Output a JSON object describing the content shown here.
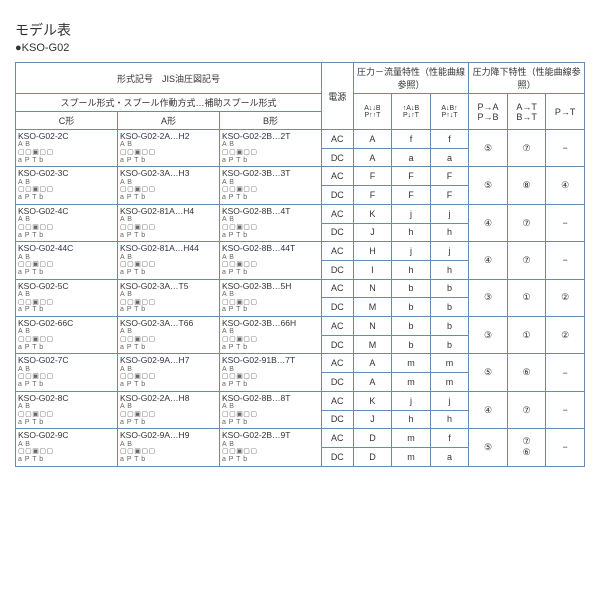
{
  "title": "モデル表",
  "subtitle": "●KSO-G02",
  "headers": {
    "model_no": "形式記号　JIS油圧図記号",
    "spool": "スプール形式・スプール作動方式…補助スプール形式",
    "c_type": "C形",
    "a_type": "A形",
    "b_type": "B形",
    "power": "電源",
    "pf_title": "圧力－流量特性（性能曲線参照）",
    "pd_title": "圧力降下特性（性能曲線参照）",
    "pd_col1": "P→A\nP→B",
    "pd_col2": "A→T\nB→T",
    "pd_col3": "P→T"
  },
  "pf_diagrams": [
    "A↓↓B\nP↑↑T",
    "↑A↓B\nP↓↑T",
    "A↓B↑\nP↑↓T"
  ],
  "rows": [
    {
      "c": "KSO-G02-2C",
      "a": "KSO-G02-2A…H2",
      "b": "KSO-G02-2B…2T",
      "ps": [
        "AC",
        "DC"
      ],
      "pf": [
        [
          "A",
          "f",
          "f"
        ],
        [
          "A",
          "a",
          "a"
        ]
      ],
      "pd": [
        "⑤",
        "⑦",
        "−"
      ],
      "pd_span": 2
    },
    {
      "c": "KSO-G02-3C",
      "a": "KSO-G02-3A…H3",
      "b": "KSO-G02-3B…3T",
      "ps": [
        "AC",
        "DC"
      ],
      "pf": [
        [
          "F",
          "F",
          "F"
        ],
        [
          "F",
          "F",
          "F"
        ]
      ],
      "pd": [
        "⑤",
        "⑧",
        "④"
      ],
      "pd_span": 2
    },
    {
      "c": "KSO-G02-4C",
      "a": "KSO-G02-81A…H4",
      "b": "KSO-G02-8B…4T",
      "ps": [
        "AC",
        "DC"
      ],
      "pf": [
        [
          "K",
          "j",
          "j"
        ],
        [
          "J",
          "h",
          "h"
        ]
      ],
      "pd": [
        "④",
        "⑦",
        "−"
      ],
      "pd_span": 2
    },
    {
      "c": "KSO-G02-44C",
      "a": "KSO-G02-81A…H44",
      "b": "KSO-G02-8B…44T",
      "ps": [
        "AC",
        "DC"
      ],
      "pf": [
        [
          "H",
          "j",
          "j"
        ],
        [
          "I",
          "h",
          "h"
        ]
      ],
      "pd": [
        "④",
        "⑦",
        "−"
      ],
      "pd_span": 2
    },
    {
      "c": "KSO-G02-5C",
      "a": "KSO-G02-3A…T5",
      "b": "KSO-G02-3B…5H",
      "ps": [
        "AC",
        "DC"
      ],
      "pf": [
        [
          "N",
          "b",
          "b"
        ],
        [
          "M",
          "b",
          "b"
        ]
      ],
      "pd": [
        "③",
        "①",
        "②"
      ],
      "pd_span": 2
    },
    {
      "c": "KSO-G02-66C",
      "a": "KSO-G02-3A…T66",
      "b": "KSO-G02-3B…66H",
      "ps": [
        "AC",
        "DC"
      ],
      "pf": [
        [
          "N",
          "b",
          "b"
        ],
        [
          "M",
          "b",
          "b"
        ]
      ],
      "pd": [
        "③",
        "①",
        "②"
      ],
      "pd_span": 2
    },
    {
      "c": "KSO-G02-7C",
      "a": "KSO-G02-9A…H7",
      "b": "KSO-G02-91B…7T",
      "ps": [
        "AC",
        "DC"
      ],
      "pf": [
        [
          "A",
          "m",
          "m"
        ],
        [
          "A",
          "m",
          "m"
        ]
      ],
      "pd": [
        "⑤",
        "⑥",
        "−"
      ],
      "pd_span": 2
    },
    {
      "c": "KSO-G02-8C",
      "a": "KSO-G02-2A…H8",
      "b": "KSO-G02-8B…8T",
      "ps": [
        "AC",
        "DC"
      ],
      "pf": [
        [
          "K",
          "j",
          "j"
        ],
        [
          "J",
          "h",
          "h"
        ]
      ],
      "pd": [
        "④",
        "⑦",
        "−"
      ],
      "pd_span": 2
    },
    {
      "c": "KSO-G02-9C",
      "a": "KSO-G02-9A…H9",
      "b": "KSO-G02-2B…9T",
      "ps": [
        "AC",
        "DC"
      ],
      "pf": [
        [
          "D",
          "m",
          "f"
        ],
        [
          "D",
          "m",
          "a"
        ]
      ],
      "pd": [
        "⑤",
        "⑦\n⑥",
        "−"
      ],
      "pd_span": 2
    }
  ],
  "sym": "a  P T  b"
}
